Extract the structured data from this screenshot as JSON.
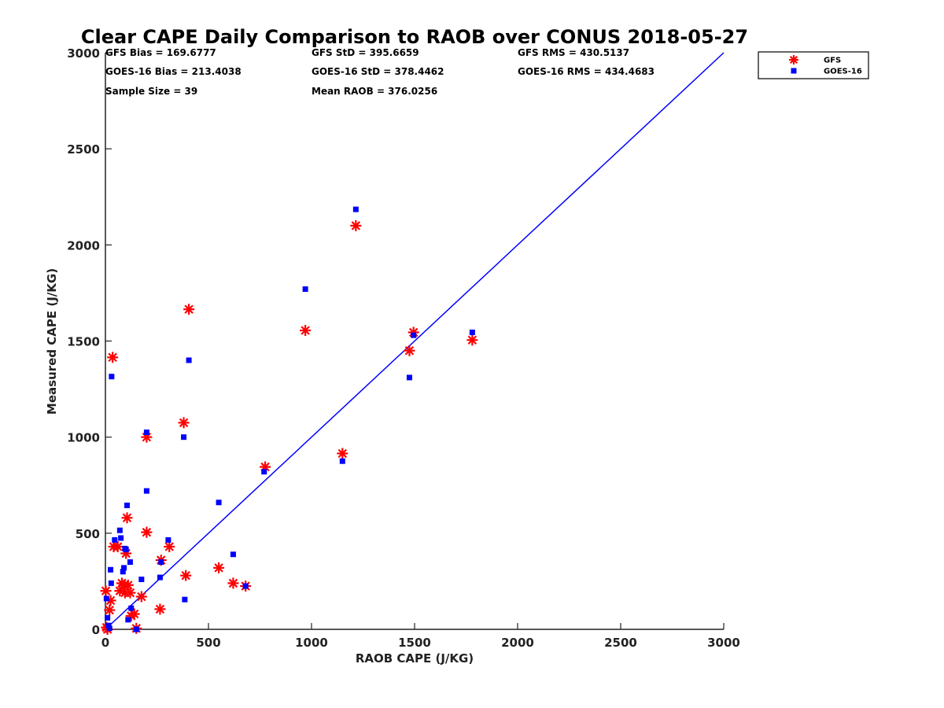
{
  "chart_data": {
    "type": "scatter",
    "title": "Clear CAPE Daily Comparison to RAOB over CONUS 2018-05-27",
    "xlabel": "RAOB CAPE (J/KG)",
    "ylabel": "Measured CAPE (J/KG)",
    "xlim": [
      0,
      3000
    ],
    "ylim": [
      0,
      3000
    ],
    "xticks": [
      "0",
      "500",
      "1000",
      "1500",
      "2000",
      "2500",
      "3000"
    ],
    "yticks": [
      "0",
      "500",
      "1000",
      "1500",
      "2000",
      "2500",
      "3000"
    ],
    "grid": false,
    "legend_position": "outside-top-right",
    "stats": [
      "GFS Bias = 169.6777",
      "GFS StD = 395.6659",
      "GFS RMS = 430.5137",
      "GOES-16 Bias = 213.4038",
      "GOES-16 StD = 378.4462",
      "GOES-16 RMS = 434.4683",
      "Sample Size = 39",
      "Mean RAOB = 376.0256"
    ],
    "one_to_one_line": [
      [
        0,
        0
      ],
      [
        3000,
        3000
      ]
    ],
    "series": [
      {
        "name": "GFS",
        "marker": "asterisk",
        "color": "#ff0000",
        "points": [
          [
            2,
            200
          ],
          [
            5,
            10
          ],
          [
            10,
            0
          ],
          [
            20,
            100
          ],
          [
            25,
            150
          ],
          [
            35,
            1415
          ],
          [
            40,
            430
          ],
          [
            60,
            430
          ],
          [
            70,
            200
          ],
          [
            80,
            240
          ],
          [
            90,
            230
          ],
          [
            95,
            190
          ],
          [
            100,
            395
          ],
          [
            105,
            580
          ],
          [
            110,
            230
          ],
          [
            120,
            190
          ],
          [
            125,
            70
          ],
          [
            140,
            80
          ],
          [
            150,
            5
          ],
          [
            175,
            170
          ],
          [
            200,
            505
          ],
          [
            200,
            1000
          ],
          [
            265,
            105
          ],
          [
            270,
            360
          ],
          [
            310,
            430
          ],
          [
            380,
            1075
          ],
          [
            390,
            280
          ],
          [
            405,
            1665
          ],
          [
            550,
            320
          ],
          [
            620,
            240
          ],
          [
            680,
            225
          ],
          [
            775,
            845
          ],
          [
            970,
            1555
          ],
          [
            1150,
            915
          ],
          [
            1215,
            2100
          ],
          [
            1475,
            1450
          ],
          [
            1495,
            1545
          ],
          [
            1780,
            1505
          ]
        ]
      },
      {
        "name": "GOES-16",
        "marker": "square",
        "color": "#0000ff",
        "points": [
          [
            5,
            160
          ],
          [
            10,
            60
          ],
          [
            15,
            20
          ],
          [
            20,
            5
          ],
          [
            25,
            310
          ],
          [
            28,
            240
          ],
          [
            30,
            1315
          ],
          [
            45,
            465
          ],
          [
            70,
            515
          ],
          [
            75,
            475
          ],
          [
            85,
            300
          ],
          [
            90,
            320
          ],
          [
            95,
            420
          ],
          [
            100,
            415
          ],
          [
            105,
            645
          ],
          [
            110,
            50
          ],
          [
            120,
            350
          ],
          [
            125,
            110
          ],
          [
            150,
            0
          ],
          [
            175,
            260
          ],
          [
            200,
            1025
          ],
          [
            200,
            720
          ],
          [
            265,
            270
          ],
          [
            270,
            350
          ],
          [
            305,
            465
          ],
          [
            380,
            1000
          ],
          [
            385,
            155
          ],
          [
            405,
            1400
          ],
          [
            550,
            660
          ],
          [
            620,
            390
          ],
          [
            680,
            225
          ],
          [
            770,
            820
          ],
          [
            970,
            1770
          ],
          [
            1150,
            875
          ],
          [
            1215,
            2185
          ],
          [
            1475,
            1310
          ],
          [
            1495,
            1530
          ],
          [
            1780,
            1545
          ]
        ]
      }
    ]
  }
}
